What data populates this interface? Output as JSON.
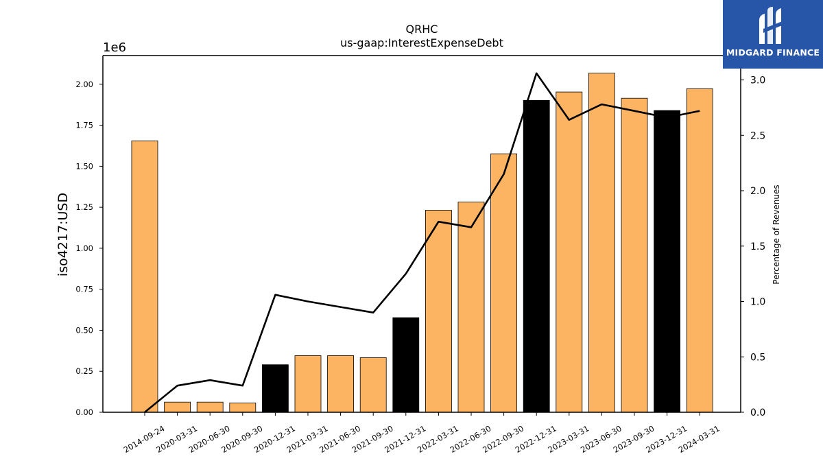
{
  "brand": {
    "name": "MIDGARD FINANCE",
    "logo_icon": "midgard-finance-logo-icon",
    "color": "#2756a8"
  },
  "chart_data": {
    "type": "bar",
    "title": "QRHC",
    "subtitle": "us-gaap:InterestExpenseDebt",
    "ylabel": "iso4217:USD",
    "ylabel_right": "Percentage of Revenues",
    "offset_label": "1e6",
    "categories": [
      "2014-09-24",
      "2020-03-31",
      "2020-06-30",
      "2020-09-30",
      "2020-12-31",
      "2021-03-31",
      "2021-06-30",
      "2021-09-30",
      "2021-12-31",
      "2022-03-31",
      "2022-06-30",
      "2022-09-30",
      "2022-12-31",
      "2023-03-31",
      "2023-06-30",
      "2023-09-30",
      "2023-12-31",
      "2024-03-31"
    ],
    "series": [
      {
        "type": "bar",
        "axis": "left",
        "values": [
          1655000,
          62000,
          62000,
          57000,
          290000,
          345000,
          345000,
          333000,
          577000,
          1232000,
          1282000,
          1576000,
          1902000,
          1953000,
          2068000,
          1915000,
          1840000,
          1973000
        ],
        "colors": [
          "#fdb462",
          "#fdb462",
          "#fdb462",
          "#fdb462",
          "#000000",
          "#fdb462",
          "#fdb462",
          "#fdb462",
          "#000000",
          "#fdb462",
          "#fdb462",
          "#fdb462",
          "#000000",
          "#fdb462",
          "#fdb462",
          "#fdb462",
          "#000000",
          "#fdb462"
        ]
      },
      {
        "type": "line",
        "axis": "right",
        "color": "#000000",
        "values": [
          0.0,
          0.24,
          0.29,
          0.24,
          1.06,
          1.0,
          0.95,
          0.9,
          1.25,
          1.72,
          1.67,
          2.15,
          3.06,
          2.64,
          2.78,
          2.72,
          2.66,
          2.72
        ]
      }
    ],
    "ylim": [
      0,
      2175000
    ],
    "yticks": [
      0,
      250000,
      500000,
      750000,
      1000000,
      1250000,
      1500000,
      1750000,
      2000000
    ],
    "ytick_labels": [
      "0.00",
      "0.25",
      "0.50",
      "0.75",
      "1.00",
      "1.25",
      "1.50",
      "1.75",
      "2.00"
    ],
    "y2lim": [
      0,
      3.22
    ],
    "y2ticks": [
      0,
      0.5,
      1.0,
      1.5,
      2.0,
      2.5,
      3.0
    ],
    "y2tick_labels": [
      "0.0",
      "0.5",
      "1.0",
      "1.5",
      "2.0",
      "2.5",
      "3.0"
    ],
    "grid": false,
    "bar_edge_color": "#000000",
    "bar_default_color": "#fdb462",
    "bar_highlight_color": "#000000"
  }
}
